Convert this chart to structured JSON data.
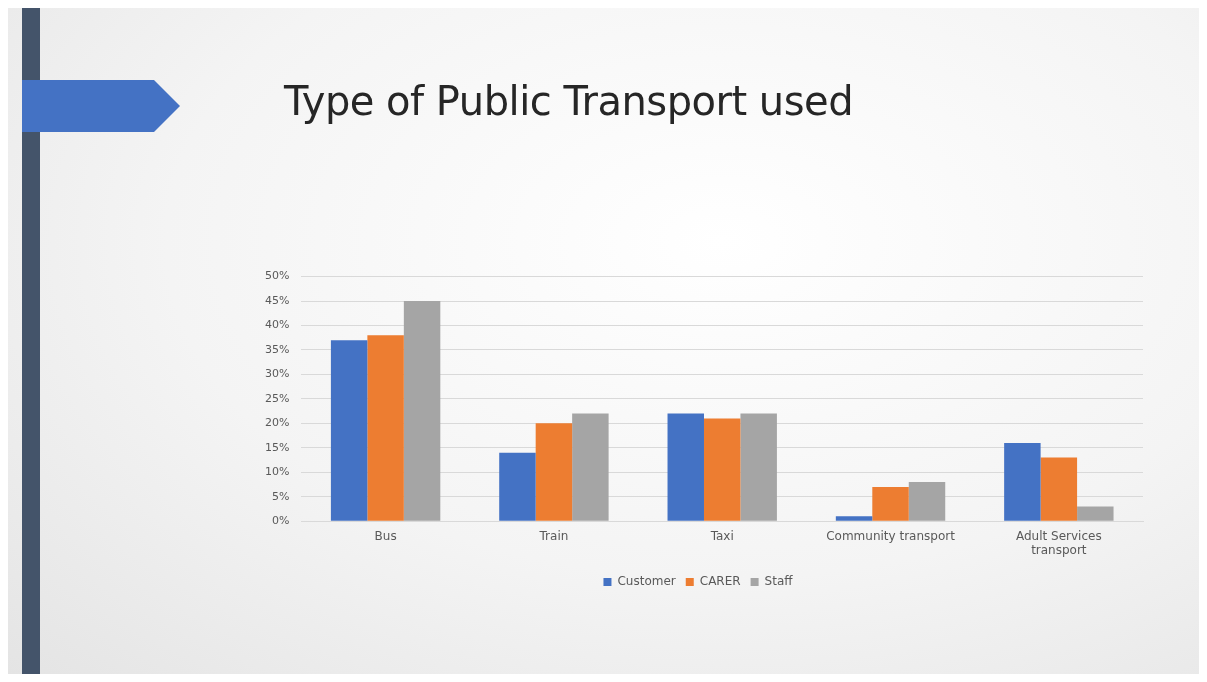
{
  "chart_data": {
    "type": "bar",
    "title": "Type of Public Transport used",
    "categories": [
      "Bus",
      "Train",
      "Taxi",
      "Community transport",
      "Adult Services transport"
    ],
    "series": [
      {
        "name": "Customer",
        "color": "#4472c4",
        "values": [
          37,
          14,
          22,
          1,
          16
        ]
      },
      {
        "name": "CARER",
        "color": "#ed7d31",
        "values": [
          38,
          20,
          21,
          7,
          13
        ]
      },
      {
        "name": "Staff",
        "color": "#a5a5a5",
        "values": [
          45,
          22,
          22,
          8,
          3
        ]
      }
    ],
    "ylim": [
      0,
      50
    ],
    "yticks": [
      {
        "value": 0,
        "label": "0%"
      },
      {
        "value": 5,
        "label": "5%"
      },
      {
        "value": 10,
        "label": "10%"
      },
      {
        "value": 15,
        "label": "15%"
      },
      {
        "value": 20,
        "label": "20%"
      },
      {
        "value": 25,
        "label": "25%"
      },
      {
        "value": 30,
        "label": "30%"
      },
      {
        "value": 35,
        "label": "35%"
      },
      {
        "value": 40,
        "label": "40%"
      },
      {
        "value": 45,
        "label": "45%"
      },
      {
        "value": 50,
        "label": "50%"
      }
    ],
    "grid": "y",
    "legend": "bottom"
  }
}
